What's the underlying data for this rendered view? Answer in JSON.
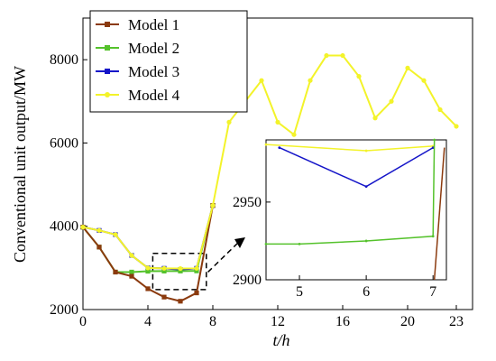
{
  "chart_data": [
    {
      "type": "line",
      "xlabel": "t/h",
      "ylabel": "Conventional unit output/MW",
      "xlim": [
        0,
        24
      ],
      "ylim": [
        2000,
        9000
      ],
      "xticks": [
        0,
        4,
        8,
        12,
        16,
        20,
        23
      ],
      "yticks": [
        2000,
        4000,
        6000,
        8000
      ],
      "legend_position": "top-left",
      "series": [
        {
          "name": "Model 1",
          "color": "#8B3A0E",
          "marker": "square",
          "x": [
            0,
            1,
            2,
            3,
            4,
            5,
            6,
            7,
            8
          ],
          "y": [
            3980,
            3500,
            2900,
            2800,
            2500,
            2300,
            2200,
            2400,
            4500
          ]
        },
        {
          "name": "Model 2",
          "color": "#55C22C",
          "marker": "square",
          "x": [
            0,
            1,
            2,
            3,
            4,
            5,
            6,
            7,
            8
          ],
          "y": [
            3980,
            3500,
            2900,
            2900,
            2920,
            2923,
            2925,
            2928,
            4500
          ]
        },
        {
          "name": "Model 3",
          "color": "#1414C8",
          "marker": "square",
          "x": [
            0,
            1,
            2,
            3,
            4,
            5,
            6,
            7,
            8
          ],
          "y": [
            3980,
            3900,
            3800,
            3300,
            3000,
            2990,
            2960,
            2990,
            4500
          ]
        },
        {
          "name": "Model 4",
          "color": "#F3F32A",
          "marker": "circle",
          "x": [
            0,
            1,
            2,
            3,
            4,
            5,
            6,
            7,
            8,
            9,
            10,
            11,
            12,
            13,
            14,
            15,
            16,
            17,
            18,
            19,
            20,
            21,
            22,
            23
          ],
          "y": [
            3980,
            3900,
            3800,
            3300,
            3000,
            2990,
            2985,
            2990,
            4500,
            6500,
            7000,
            7500,
            6500,
            6200,
            7500,
            8100,
            8100,
            7600,
            6600,
            7000,
            7800,
            7500,
            6800,
            6400
          ]
        }
      ]
    },
    {
      "type": "line",
      "inset": true,
      "xlim": [
        4.5,
        7.2
      ],
      "ylim": [
        2900,
        2990
      ],
      "xticks": [
        5,
        6,
        7
      ],
      "yticks": [
        2900,
        2950
      ],
      "series": [
        {
          "name": "Model 1",
          "x": [
            7.02,
            7.17
          ],
          "y": [
            2900,
            2985
          ]
        },
        {
          "name": "Model 2",
          "x": [
            4.5,
            5,
            6,
            7,
            7.02
          ],
          "y": [
            2923,
            2923,
            2925,
            2928,
            2990
          ]
        },
        {
          "name": "Model 3",
          "x": [
            4.7,
            6,
            7
          ],
          "y": [
            2985,
            2960,
            2985
          ]
        },
        {
          "name": "Model 4",
          "x": [
            4.5,
            6,
            7
          ],
          "y": [
            2987,
            2983,
            2986
          ]
        }
      ]
    }
  ]
}
